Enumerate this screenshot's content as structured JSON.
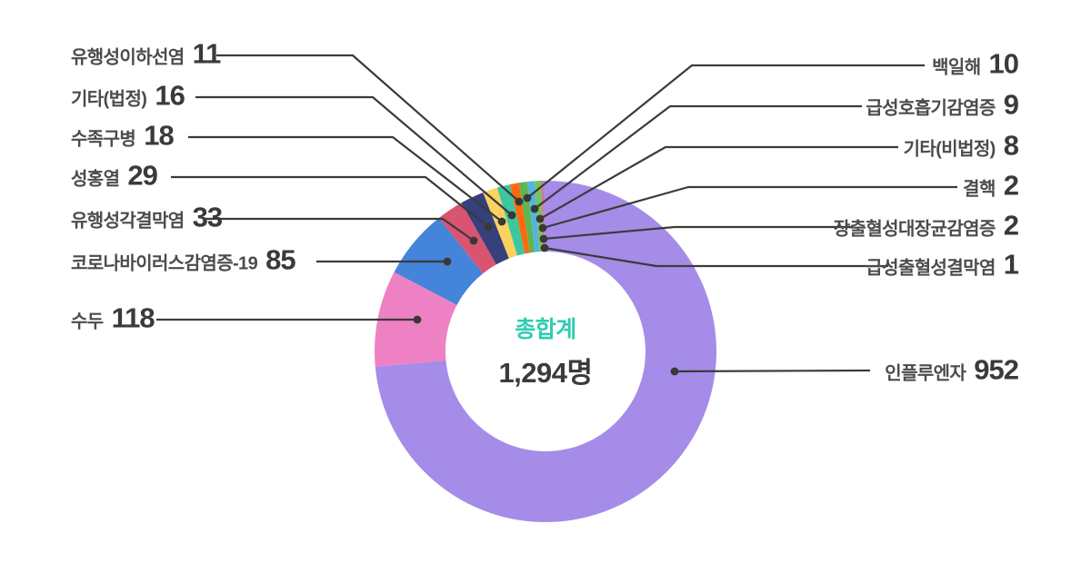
{
  "chart_data": {
    "type": "pie",
    "subtype": "donut",
    "title": "",
    "center_label": "총합계",
    "center_value": "1,294명",
    "total": 1294,
    "unit": "명",
    "legend_position": "callout-labels",
    "start_angle_deg": 0,
    "direction": "clockwise",
    "colors": {
      "center_label": "#2dcdb2",
      "center_value": "#3b3b3b",
      "label_text": "#4b4b4b",
      "value_text": "#3a3a3a",
      "leader_line": "#3b3b3b"
    },
    "series": [
      {
        "label": "인플루엔자",
        "value": 952,
        "color": "#a58ce8"
      },
      {
        "label": "수두",
        "value": 118,
        "color": "#ee81c3"
      },
      {
        "label": "코로나바이러스감염증-19",
        "value": 85,
        "color": "#4484da"
      },
      {
        "label": "유행성각결막염",
        "value": 33,
        "color": "#d95471"
      },
      {
        "label": "성홍열",
        "value": 29,
        "color": "#35407c"
      },
      {
        "label": "수족구병",
        "value": 18,
        "color": "#fcd25f"
      },
      {
        "label": "기타(법정)",
        "value": 16,
        "color": "#3cc7a0"
      },
      {
        "label": "유행성이하선염",
        "value": 11,
        "color": "#f96b10"
      },
      {
        "label": "백일해",
        "value": 10,
        "color": "#5eb553"
      },
      {
        "label": "급성호흡기감염증",
        "value": 9,
        "color": "#54b4de"
      },
      {
        "label": "기타(비법정)",
        "value": 8,
        "color": "#77c25c"
      },
      {
        "label": "결핵",
        "value": 2,
        "color": "#d06f9a"
      },
      {
        "label": "장출혈성대장균감염증",
        "value": 2,
        "color": "#bd7ec2"
      },
      {
        "label": "급성출혈성결막염",
        "value": 1,
        "color": "#ad86d6"
      }
    ]
  }
}
